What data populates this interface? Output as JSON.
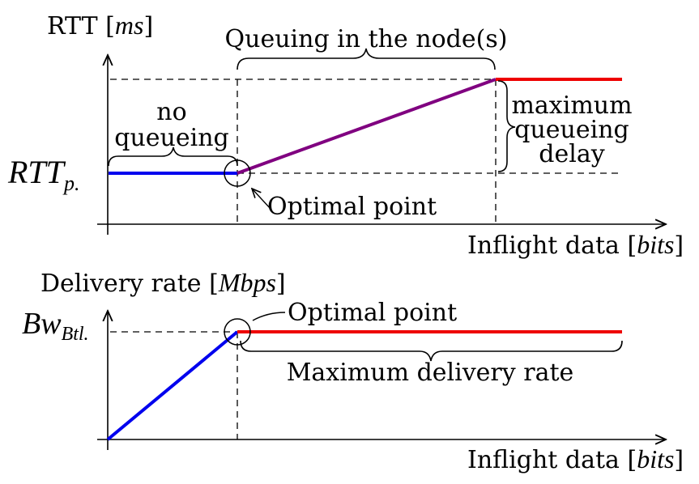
{
  "top": {
    "y_label": "RTT",
    "y_unit": "ms",
    "x_label": "Inflight data",
    "x_unit": "bits",
    "rtt_level_main": "RTT",
    "rtt_level_sub": "p.",
    "queuing_brace": "Queuing in the node(s)",
    "no_queueing_line1": "no",
    "no_queueing_line2": "queueing",
    "max_delay_line1": "maximum",
    "max_delay_line2": "queueing",
    "max_delay_line3": "delay",
    "optimal_point": "Optimal point",
    "colors": {
      "no_queue": "#0000ee",
      "queueing": "#800080",
      "max": "#ee0000"
    }
  },
  "bottom": {
    "y_label": "Delivery rate",
    "y_unit": "Mbps",
    "x_label": "Inflight data",
    "x_unit": "bits",
    "bw_main": "Bw",
    "bw_sub": "Btl.",
    "optimal_point": "Optimal point",
    "max_rate": "Maximum delivery rate",
    "colors": {
      "ramp": "#0000ee",
      "max": "#ee0000"
    }
  }
}
